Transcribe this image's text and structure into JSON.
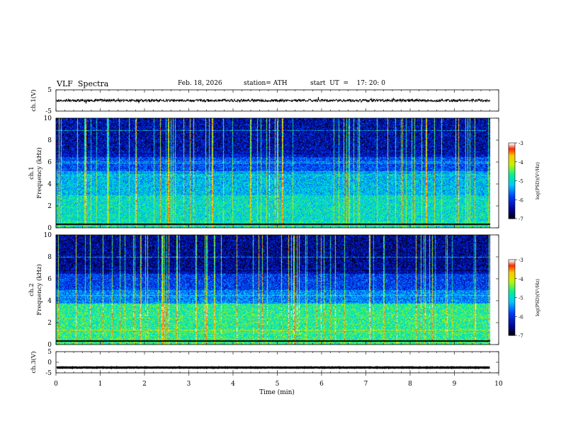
{
  "header": {
    "title": "VLF  Spectra",
    "date": "Feb. 18, 2026",
    "station": "station= ATH",
    "start_ut": "start  UT  =    17: 20: 0"
  },
  "chart_data": [
    {
      "type": "line",
      "panel": "ch1-waveform",
      "ylabel": "ch.1(V)",
      "ylim": [
        -5,
        5
      ],
      "yticks": [
        5,
        -5
      ],
      "x_range_min": [
        0,
        9.8
      ],
      "baseline_value": 0,
      "noise_amplitude": 0.6
    },
    {
      "type": "heatmap",
      "panel": "ch1-spectrogram",
      "ylabel": "ch.1 Frequency  (kHz)",
      "ylim": [
        0,
        10
      ],
      "yticks": [
        0,
        2,
        4,
        6,
        8,
        10
      ],
      "x_range_min": [
        0,
        9.8
      ],
      "colorbar": {
        "label": "log(PSD)(V²/Hz)",
        "ticks": [
          "-3",
          "-4",
          "-5",
          "-6",
          "-7"
        ],
        "range": [
          -7,
          -3
        ]
      }
    },
    {
      "type": "heatmap",
      "panel": "ch2-spectrogram",
      "ylabel": "ch.2 Frequency  (kHz)",
      "ylim": [
        0,
        10
      ],
      "yticks": [
        0,
        2,
        4,
        6,
        8,
        10
      ],
      "x_range_min": [
        0,
        9.8
      ],
      "colorbar": {
        "label": "log(PSD)(V²/Hz)",
        "ticks": [
          "-3",
          "-4",
          "-5",
          "-6",
          "-7"
        ],
        "range": [
          -7,
          -3
        ]
      }
    },
    {
      "type": "line",
      "panel": "ch3-waveform",
      "ylabel": "ch.3(V)",
      "ylim": [
        -5,
        5
      ],
      "yticks": [
        5,
        0,
        -5
      ],
      "x_range_min": [
        0,
        9.8
      ],
      "baseline_value": -2.5,
      "noise_amplitude": 0.1
    }
  ],
  "x_axis": {
    "label": "Time  (min)",
    "xlim": [
      0,
      10
    ],
    "ticks": [
      "0",
      "1",
      "2",
      "3",
      "4",
      "5",
      "6",
      "7",
      "8",
      "9",
      "10"
    ]
  }
}
